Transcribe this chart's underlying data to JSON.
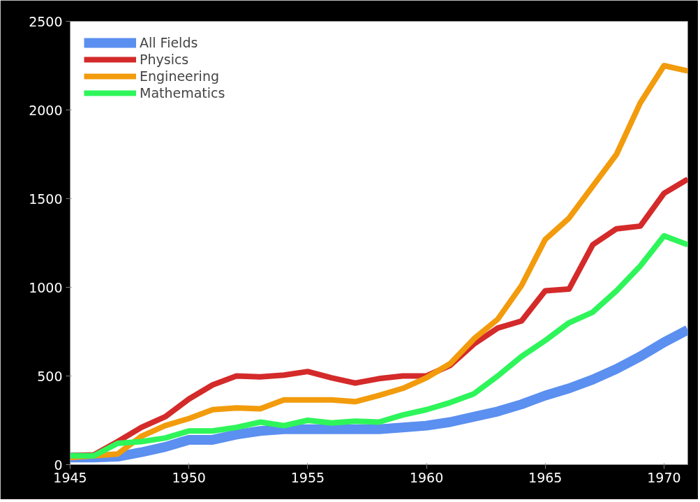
{
  "chart_data": {
    "type": "line",
    "x": [
      1945,
      1946,
      1947,
      1948,
      1949,
      1950,
      1951,
      1952,
      1953,
      1954,
      1955,
      1956,
      1957,
      1958,
      1959,
      1960,
      1961,
      1962,
      1963,
      1964,
      1965,
      1966,
      1967,
      1968,
      1969,
      1970,
      1971
    ],
    "xlim": [
      1945,
      1971
    ],
    "xticks": [
      1945,
      1950,
      1955,
      1960,
      1965,
      1970
    ],
    "ylim": [
      0,
      2500
    ],
    "yticks": [
      0,
      500,
      1000,
      1500,
      2000,
      2500
    ],
    "grid": false,
    "legend": "top left",
    "marker": "none",
    "line_style": "solid",
    "series": [
      {
        "name": "All Fields",
        "color": "#5b8ff0",
        "values": [
          40,
          40,
          45,
          70,
          100,
          140,
          140,
          170,
          190,
          200,
          200,
          200,
          200,
          200,
          210,
          220,
          240,
          270,
          300,
          340,
          390,
          430,
          480,
          540,
          610,
          690,
          760
        ]
      },
      {
        "name": "Physics",
        "color": "#d42a2a",
        "values": [
          50,
          55,
          130,
          210,
          270,
          370,
          450,
          500,
          495,
          505,
          525,
          490,
          460,
          485,
          500,
          500,
          560,
          680,
          770,
          810,
          980,
          990,
          1240,
          1330,
          1345,
          1530,
          1610
        ]
      },
      {
        "name": "Engineering",
        "color": "#f29b0c",
        "values": [
          40,
          50,
          60,
          160,
          220,
          260,
          310,
          320,
          315,
          365,
          365,
          365,
          355,
          390,
          430,
          490,
          570,
          710,
          820,
          1010,
          1270,
          1390,
          1570,
          1750,
          2040,
          2250,
          2220
        ]
      },
      {
        "name": "Mathematics",
        "color": "#2ef55a",
        "values": [
          50,
          50,
          120,
          130,
          150,
          190,
          190,
          210,
          240,
          220,
          250,
          235,
          245,
          240,
          280,
          310,
          350,
          400,
          500,
          610,
          700,
          800,
          860,
          980,
          1120,
          1290,
          1240
        ]
      }
    ]
  }
}
